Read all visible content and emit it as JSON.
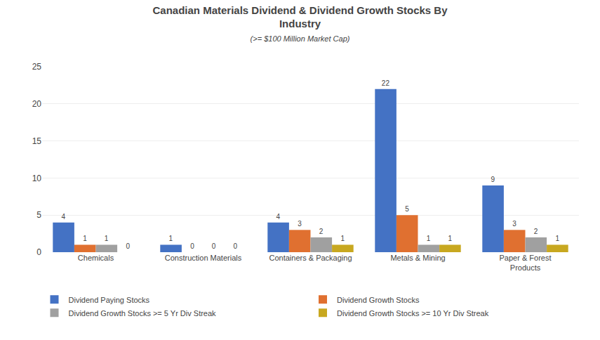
{
  "chart_data": {
    "type": "bar",
    "title": "Canadian Materials Dividend & Dividend Growth Stocks By\nIndustry",
    "subtitle": "(>= $100 Million Market Cap)",
    "categories": [
      "Chemicals",
      "Construction Materials",
      "Containers & Packaging",
      "Metals & Mining",
      "Paper & Forest\nProducts"
    ],
    "series": [
      {
        "name": "Dividend Paying Stocks",
        "color": "#4472c4",
        "values": [
          4,
          1,
          4,
          22,
          9
        ]
      },
      {
        "name": "Dividend Growth Stocks",
        "color": "#e07030",
        "values": [
          1,
          0,
          3,
          5,
          3
        ]
      },
      {
        "name": "Dividend Growth Stocks >= 5 Yr Div Streak",
        "color": "#a0a0a0",
        "values": [
          1,
          0,
          2,
          1,
          2
        ]
      },
      {
        "name": "Dividend Growth Stocks >= 10 Yr Div Streak",
        "color": "#c8a820",
        "values": [
          0,
          0,
          1,
          1,
          1
        ]
      }
    ],
    "ylim": [
      0,
      25
    ],
    "yticks": [
      0,
      5,
      10,
      15,
      20,
      25
    ],
    "grid": true,
    "data_labels": true,
    "legend": "bottom"
  }
}
